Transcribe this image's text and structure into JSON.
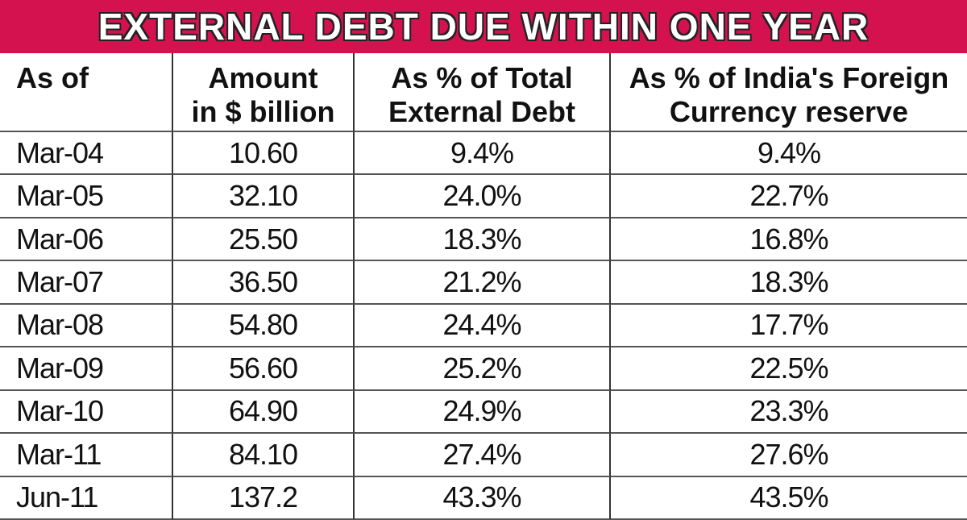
{
  "title": "EXTERNAL DEBT DUE WITHIN ONE YEAR",
  "table": {
    "header": [
      [
        "As of"
      ],
      [
        "Amount",
        "in $ billion"
      ],
      [
        "As % of Total",
        "External Debt"
      ],
      [
        "As % of India's Foreign",
        "Currency reserve"
      ]
    ],
    "rows": [
      [
        "Mar-04",
        "10.60",
        "9.4%",
        "9.4%"
      ],
      [
        "Mar-05",
        "32.10",
        "24.0%",
        "22.7%"
      ],
      [
        "Mar-06",
        "25.50",
        "18.3%",
        "16.8%"
      ],
      [
        "Mar-07",
        "36.50",
        "21.2%",
        "18.3%"
      ],
      [
        "Mar-08",
        "54.80",
        "24.4%",
        "17.7%"
      ],
      [
        "Mar-09",
        "56.60",
        "25.2%",
        "22.5%"
      ],
      [
        "Mar-10",
        "64.90",
        "24.9%",
        "23.3%"
      ],
      [
        "Mar-11",
        "84.10",
        "27.4%",
        "27.6%"
      ],
      [
        "Jun-11",
        "137.2",
        "43.3%",
        "43.5%"
      ]
    ]
  }
}
